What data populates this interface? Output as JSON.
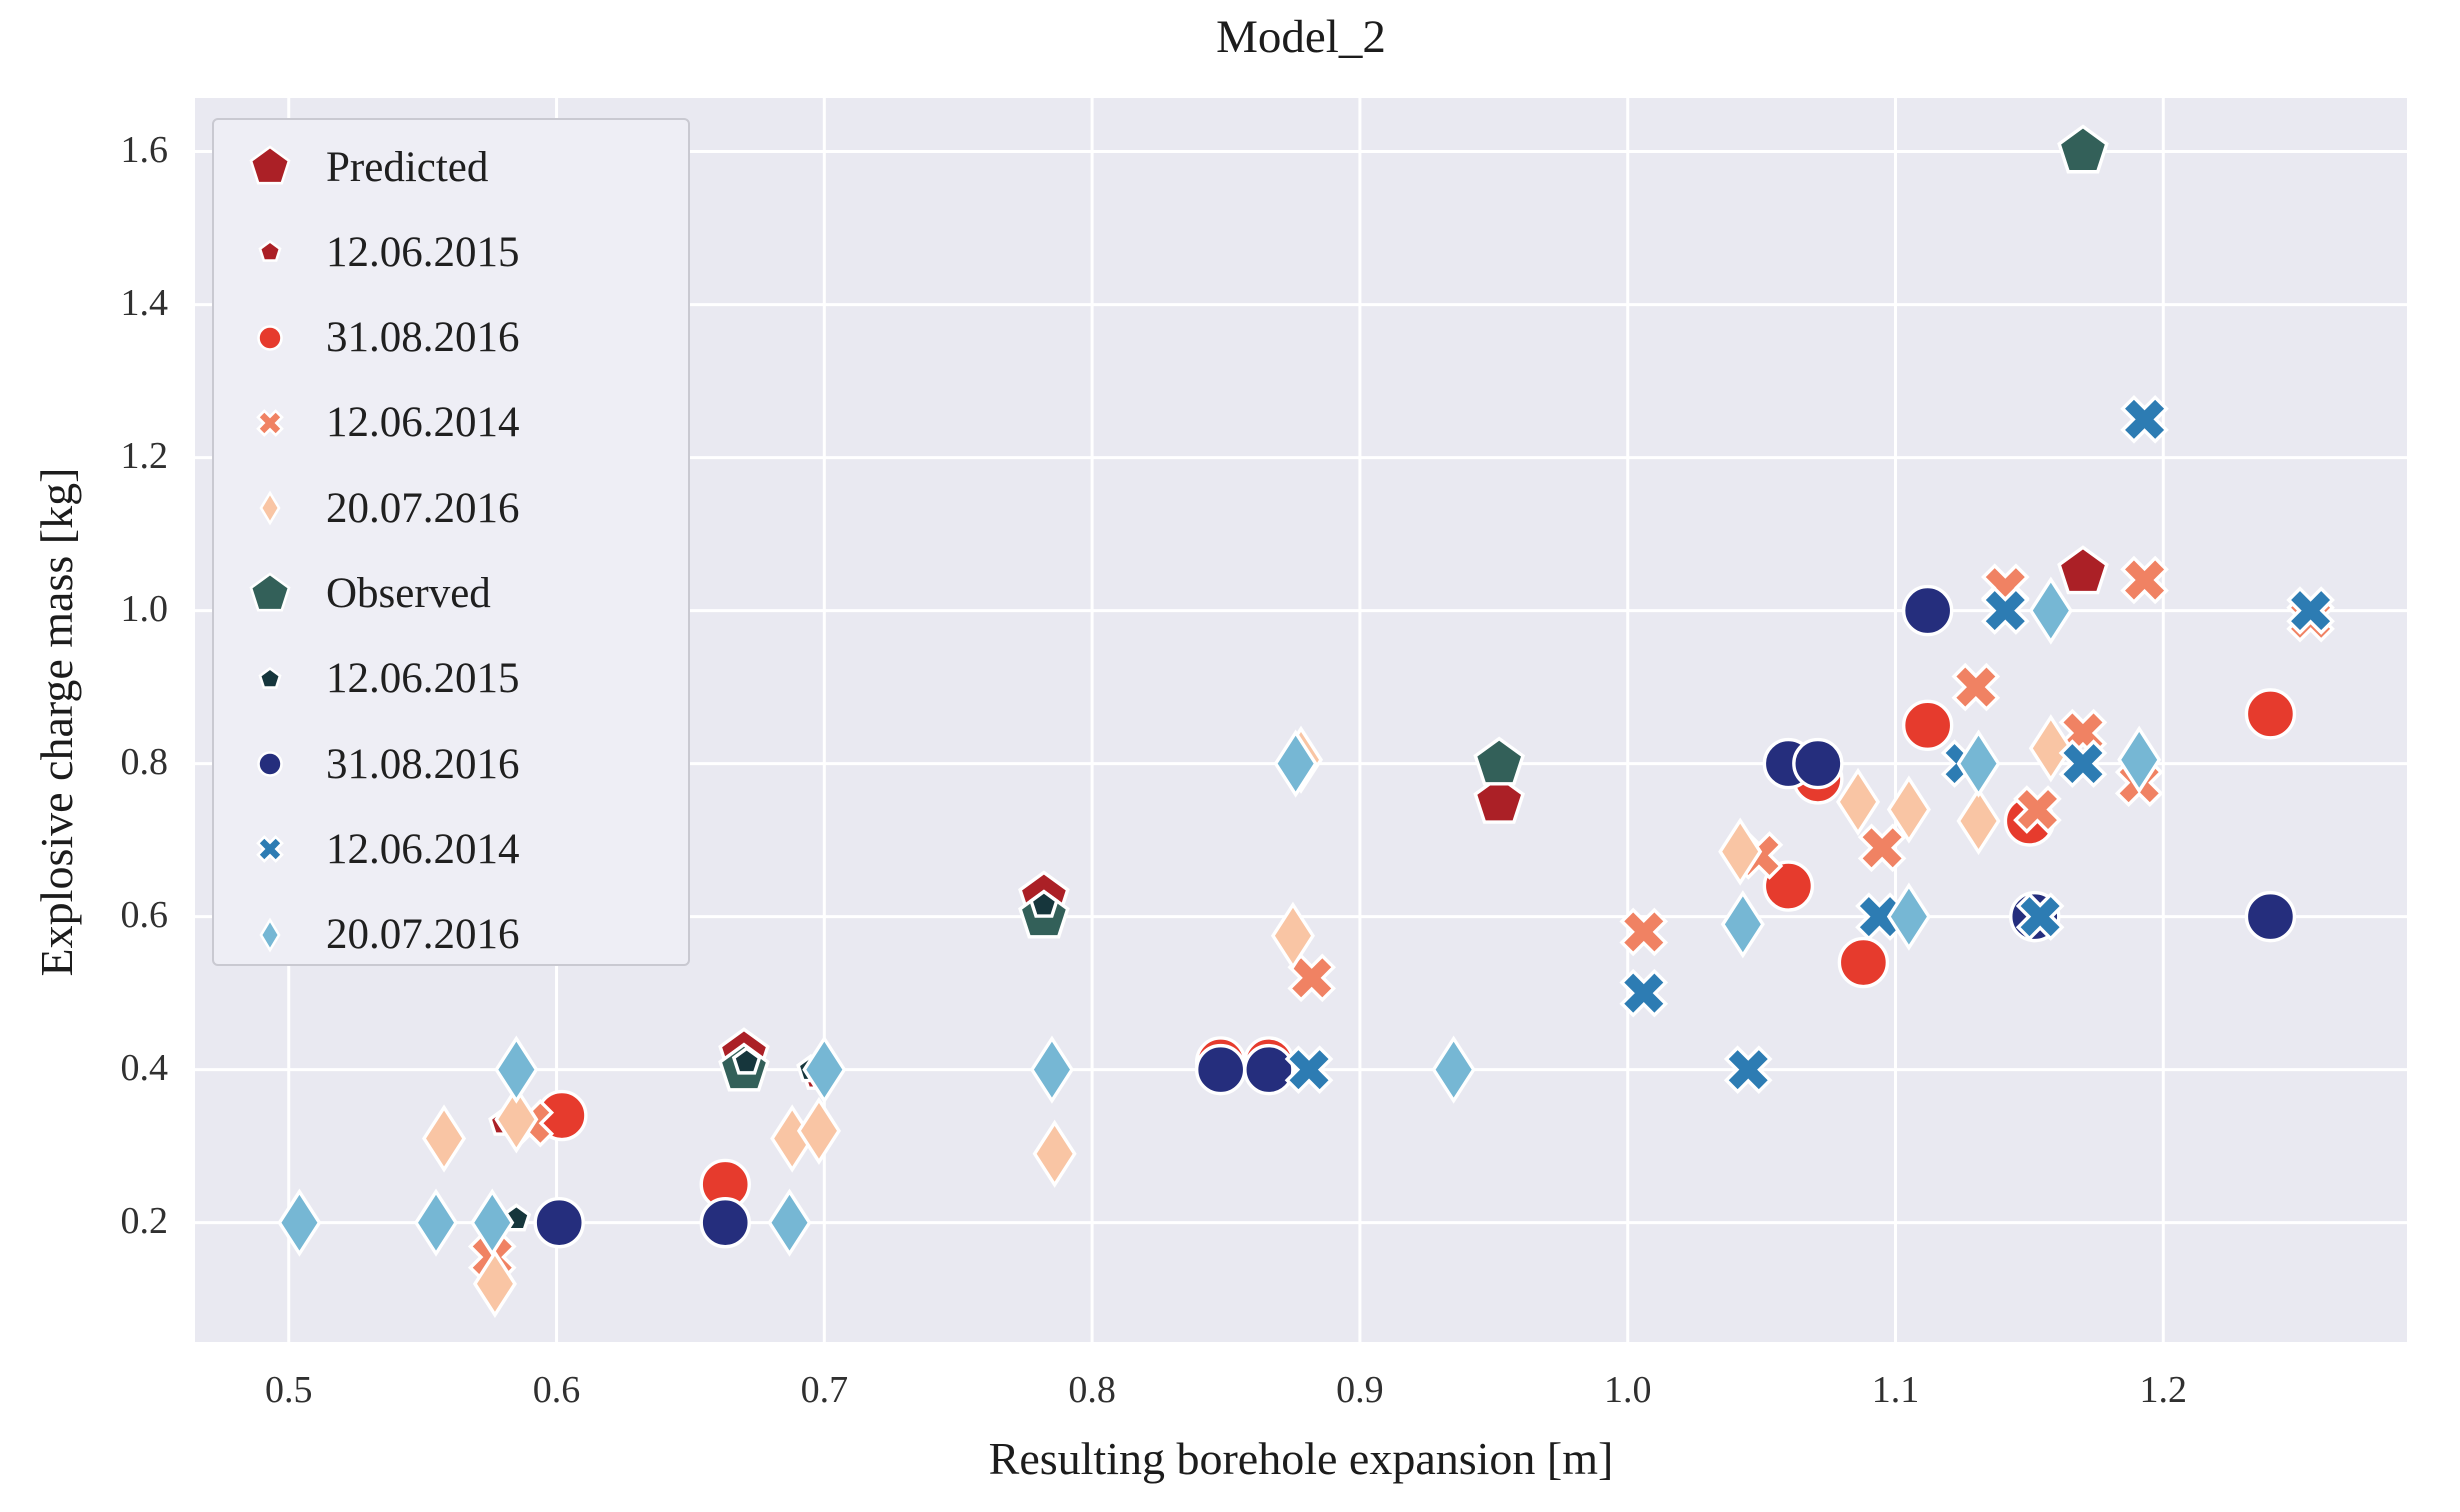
{
  "title": "Model_2",
  "axes": {
    "x_label": "Resulting borehole expansion [m]",
    "y_label": "Explosive charge mass [kg]",
    "x_tick_labels": [
      "0.5",
      "0.6",
      "0.7",
      "0.8",
      "0.9",
      "1.0",
      "1.1",
      "1.2"
    ],
    "y_tick_labels": [
      "0.2",
      "0.4",
      "0.6",
      "0.8",
      "1.0",
      "1.2",
      "1.4",
      "1.6"
    ]
  },
  "colors": {
    "plot_background": "#e9e9f1",
    "gridline": "#ffffff",
    "predicted_pentagon": "#ab2026",
    "predicted_circle": "#e63b2d",
    "predicted_x": "#f08263",
    "predicted_diamond": "#f9c5a4",
    "observed_pentagon": "#336059",
    "observed_small_pentagon": "#16363c",
    "observed_circle": "#252e7d",
    "observed_x": "#2d7cb3",
    "observed_diamond": "#76b7d4"
  },
  "legend": {
    "items": [
      {
        "label": "Predicted",
        "series": 0
      },
      {
        "label": "12.06.2015",
        "series": 1
      },
      {
        "label": "31.08.2016",
        "series": 2
      },
      {
        "label": "12.06.2014",
        "series": 3
      },
      {
        "label": "20.07.2016",
        "series": 4
      },
      {
        "label": "Observed",
        "series": 5
      },
      {
        "label": "12.06.2015",
        "series": 6
      },
      {
        "label": "31.08.2016",
        "series": 7
      },
      {
        "label": "12.06.2014",
        "series": 8
      },
      {
        "label": "20.07.2016",
        "series": 9
      }
    ]
  },
  "chart_data": {
    "type": "scatter",
    "title": "Model_2",
    "xlabel": "Resulting borehole expansion [m]",
    "ylabel": "Explosive charge mass [kg]",
    "xlim": [
      0.465,
      1.291
    ],
    "ylim": [
      0.044,
      1.67
    ],
    "x_ticks": [
      0.5,
      0.6,
      0.7,
      0.8,
      0.9,
      1.0,
      1.1,
      1.2
    ],
    "y_ticks": [
      0.2,
      0.4,
      0.6,
      0.8,
      1.0,
      1.2,
      1.4,
      1.6
    ],
    "grid": true,
    "legend_position": "upper left",
    "series": [
      {
        "name": "Predicted",
        "group": "Predicted",
        "marker": "pentagon",
        "size": "large",
        "color": "#ab2026",
        "points": [
          [
            0.67,
            0.42
          ],
          [
            0.782,
            0.625
          ],
          [
            0.952,
            0.75
          ],
          [
            1.17,
            1.05
          ]
        ]
      },
      {
        "name": "12.06.2015",
        "group": "Predicted",
        "marker": "pentagon",
        "size": "small",
        "color": "#ab2026",
        "points": [
          [
            0.58,
            0.33
          ],
          [
            0.697,
            0.39
          ]
        ]
      },
      {
        "name": "31.08.2016",
        "group": "Predicted",
        "marker": "circle",
        "size": "large",
        "color": "#e63b2d",
        "points": [
          [
            0.602,
            0.34
          ],
          [
            0.663,
            0.25
          ],
          [
            0.848,
            0.41
          ],
          [
            0.866,
            0.41
          ],
          [
            1.06,
            0.64
          ],
          [
            1.071,
            0.78
          ],
          [
            1.088,
            0.54
          ],
          [
            1.112,
            0.85
          ],
          [
            1.15,
            0.725
          ],
          [
            1.24,
            0.865
          ]
        ]
      },
      {
        "name": "12.06.2014",
        "group": "Predicted",
        "marker": "x",
        "size": "large",
        "color": "#f08263",
        "points": [
          [
            0.576,
            0.155
          ],
          [
            0.59,
            0.33
          ],
          [
            0.882,
            0.52
          ],
          [
            1.006,
            0.58
          ],
          [
            1.049,
            0.68
          ],
          [
            1.095,
            0.69
          ],
          [
            1.13,
            0.9
          ],
          [
            1.141,
            1.03
          ],
          [
            1.153,
            0.74
          ],
          [
            1.17,
            0.84
          ],
          [
            1.191,
            0.775
          ],
          [
            1.193,
            1.04
          ],
          [
            1.255,
            0.99
          ]
        ]
      },
      {
        "name": "20.07.2016",
        "group": "Predicted",
        "marker": "thin-diamond",
        "size": "large",
        "color": "#f9c5a4",
        "points": [
          [
            0.558,
            0.31
          ],
          [
            0.577,
            0.12
          ],
          [
            0.585,
            0.335
          ],
          [
            0.688,
            0.31
          ],
          [
            0.698,
            0.32
          ],
          [
            0.786,
            0.29
          ],
          [
            0.875,
            0.575
          ],
          [
            0.878,
            0.805
          ],
          [
            1.042,
            0.685
          ],
          [
            1.086,
            0.75
          ],
          [
            1.105,
            0.74
          ],
          [
            1.131,
            0.725
          ],
          [
            1.158,
            0.82
          ]
        ]
      },
      {
        "name": "Observed",
        "group": "Observed",
        "marker": "pentagon",
        "size": "large",
        "color": "#336059",
        "points": [
          [
            0.67,
            0.4
          ],
          [
            0.782,
            0.6
          ],
          [
            0.952,
            0.8
          ],
          [
            1.17,
            1.6
          ]
        ]
      },
      {
        "name": "12.06.2015",
        "group": "Observed",
        "marker": "pentagon",
        "size": "small",
        "color": "#16363c",
        "points": [
          [
            0.585,
            0.205
          ],
          [
            0.671,
            0.41
          ],
          [
            0.695,
            0.4
          ],
          [
            0.782,
            0.615
          ]
        ]
      },
      {
        "name": "31.08.2016",
        "group": "Observed",
        "marker": "circle",
        "size": "large",
        "color": "#252e7d",
        "points": [
          [
            0.601,
            0.2
          ],
          [
            0.663,
            0.2
          ],
          [
            0.848,
            0.4
          ],
          [
            0.866,
            0.4
          ],
          [
            1.06,
            0.8
          ],
          [
            1.071,
            0.8
          ],
          [
            1.112,
            1.0
          ],
          [
            1.152,
            0.6
          ],
          [
            1.24,
            0.6
          ]
        ]
      },
      {
        "name": "12.06.2014",
        "group": "Observed",
        "marker": "x",
        "size": "large",
        "color": "#2d7cb3",
        "points": [
          [
            0.881,
            0.4
          ],
          [
            1.006,
            0.5
          ],
          [
            1.045,
            0.4
          ],
          [
            1.094,
            0.6
          ],
          [
            1.126,
            0.8
          ],
          [
            1.141,
            1.0
          ],
          [
            1.154,
            0.6
          ],
          [
            1.17,
            0.8
          ],
          [
            1.193,
            1.25
          ],
          [
            1.255,
            1.0
          ]
        ]
      },
      {
        "name": "20.07.2016",
        "group": "Observed",
        "marker": "thin-diamond",
        "size": "large",
        "color": "#76b7d4",
        "points": [
          [
            0.504,
            0.2
          ],
          [
            0.555,
            0.2
          ],
          [
            0.576,
            0.2
          ],
          [
            0.585,
            0.4
          ],
          [
            0.687,
            0.2
          ],
          [
            0.7,
            0.4
          ],
          [
            0.785,
            0.4
          ],
          [
            0.876,
            0.8
          ],
          [
            0.935,
            0.4
          ],
          [
            1.043,
            0.59
          ],
          [
            1.105,
            0.6
          ],
          [
            1.131,
            0.8
          ],
          [
            1.158,
            1.0
          ],
          [
            1.191,
            0.805
          ]
        ]
      }
    ]
  }
}
